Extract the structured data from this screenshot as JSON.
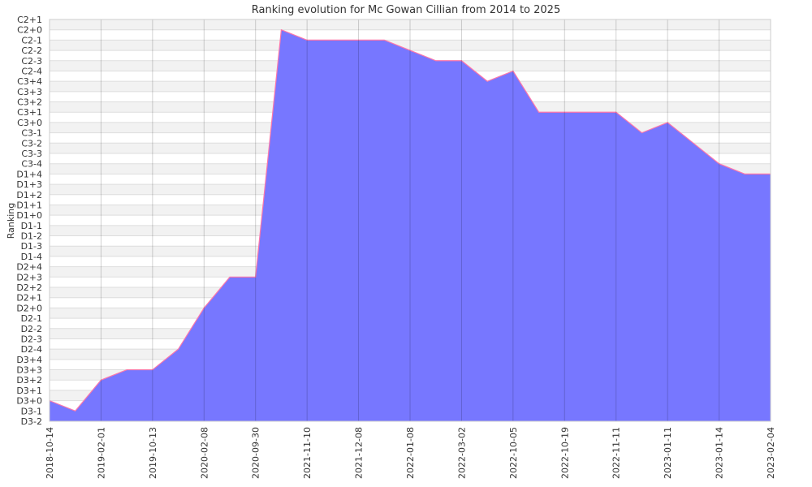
{
  "chart_data": {
    "type": "area",
    "title": "Ranking evolution for Mc Gowan Cillian from 2014 to 2025",
    "xlabel": "",
    "ylabel": "Ranking",
    "y_categories": [
      "D3-2",
      "D3-1",
      "D3+0",
      "D3+1",
      "D3+2",
      "D3+3",
      "D3+4",
      "D2-4",
      "D2-3",
      "D2-2",
      "D2-1",
      "D2+0",
      "D2+1",
      "D2+2",
      "D2+3",
      "D2+4",
      "D1-4",
      "D1-3",
      "D1-2",
      "D1-1",
      "D1+0",
      "D1+1",
      "D1+2",
      "D1+3",
      "D1+4",
      "C3-4",
      "C3-3",
      "C3-2",
      "C3-1",
      "C3+0",
      "C3+1",
      "C3+2",
      "C3+3",
      "C3+4",
      "C2-4",
      "C2-3",
      "C2-2",
      "C2-1",
      "C2+0",
      "C2+1"
    ],
    "x_tick_labels": [
      "2018-10-14",
      "2019-02-01",
      "2019-10-13",
      "2020-02-08",
      "2020-09-30",
      "2021-11-10",
      "2021-12-08",
      "2022-01-08",
      "2022-03-02",
      "2022-10-05",
      "2022-10-19",
      "2022-11-11",
      "2023-01-11",
      "2023-01-14",
      "2023-02-04"
    ],
    "points": [
      "D3+0",
      "D3-1",
      "D3+2",
      "D3+3",
      "D3+3",
      "D2-4",
      "D2+0",
      "D2+3",
      "D2+3",
      "C2+0",
      "C2-1",
      "C2-1",
      "C2-1",
      "C2-1",
      "C2-2",
      "C2-3",
      "C2-3",
      "C3+4",
      "C2-4",
      "C3+1",
      "C3+1",
      "C3+1",
      "C3+1",
      "C3-1",
      "C3+0",
      "C3-2",
      "C3-4",
      "D1+4",
      "D1+4"
    ],
    "fill_color": "#7777ff",
    "line_color": "#ff77aa",
    "grid": true,
    "legend": "none"
  }
}
